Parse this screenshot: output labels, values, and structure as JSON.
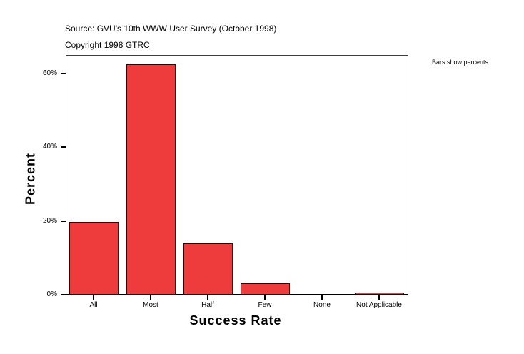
{
  "header": {
    "source": "Source: GVU's 10th WWW User Survey (October 1998)",
    "copyright": "Copyright 1998 GTRC",
    "note": "Bars show percents"
  },
  "axes": {
    "y_title": "Percent",
    "x_title": "Success Rate",
    "y_ticks": [
      "60%",
      "40%",
      "20%",
      "0%"
    ],
    "x_ticks": [
      "All",
      "Most",
      "Half",
      "Few",
      "None",
      "Not Applicable"
    ]
  },
  "colors": {
    "bar": "#ee3b3b",
    "bar_border": "#3a0000"
  },
  "chart_data": {
    "type": "bar",
    "title": "",
    "subtitle": "Source: GVU's 10th WWW User Survey (October 1998) / Copyright 1998 GTRC",
    "categories": [
      "All",
      "Most",
      "Half",
      "Few",
      "None",
      "Not Applicable"
    ],
    "values": [
      19.7,
      62.5,
      13.9,
      3.1,
      0.0,
      0.5
    ],
    "xlabel": "Success Rate",
    "ylabel": "Percent",
    "ylim": [
      0,
      65
    ],
    "yticks": [
      0,
      20,
      40,
      60
    ],
    "grid": false,
    "legend": "none",
    "annotations": [
      "Bars show percents"
    ]
  }
}
